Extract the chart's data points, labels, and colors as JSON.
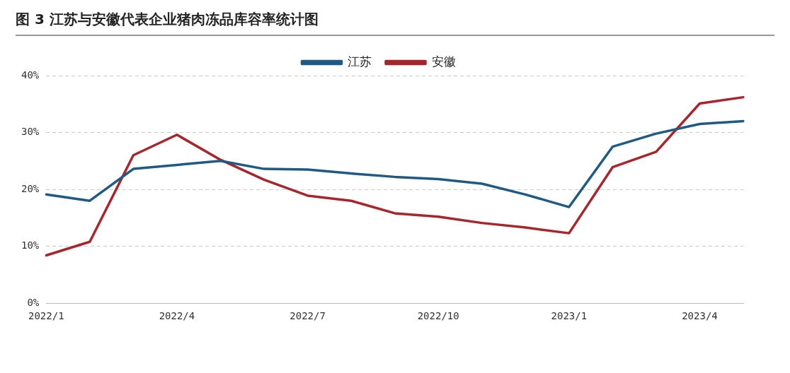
{
  "chart_data": {
    "type": "line",
    "title": "图 3 江苏与安徽代表企业猪肉冻品库容率统计图",
    "categories": [
      "2022/1",
      null,
      null,
      "2022/4",
      null,
      null,
      "2022/7",
      null,
      null,
      "2022/10",
      null,
      null,
      "2023/1",
      null,
      null,
      "2023/4",
      null
    ],
    "series": [
      {
        "name": "江苏",
        "color": "#1f5a85",
        "values": [
          19.1,
          18.0,
          23.6,
          24.3,
          25.0,
          23.6,
          23.5,
          22.8,
          22.2,
          21.8,
          21.0,
          19.1,
          16.9,
          27.5,
          29.8,
          31.5,
          32.0
        ]
      },
      {
        "name": "安徽",
        "color": "#a8262b",
        "values": [
          8.4,
          10.8,
          26.0,
          29.6,
          25.2,
          21.7,
          18.9,
          18.0,
          15.8,
          15.2,
          14.1,
          13.3,
          12.3,
          23.9,
          26.6,
          35.1,
          36.2
        ]
      }
    ],
    "ylim": [
      0,
      40
    ],
    "yticks": [
      {
        "value": 0,
        "label": "0%"
      },
      {
        "value": 10,
        "label": "10%"
      },
      {
        "value": 20,
        "label": "20%"
      },
      {
        "value": 30,
        "label": "30%"
      },
      {
        "value": 40,
        "label": "40%"
      }
    ],
    "grid": "y",
    "legend": "top",
    "marker": "none",
    "line_style": "solid"
  }
}
